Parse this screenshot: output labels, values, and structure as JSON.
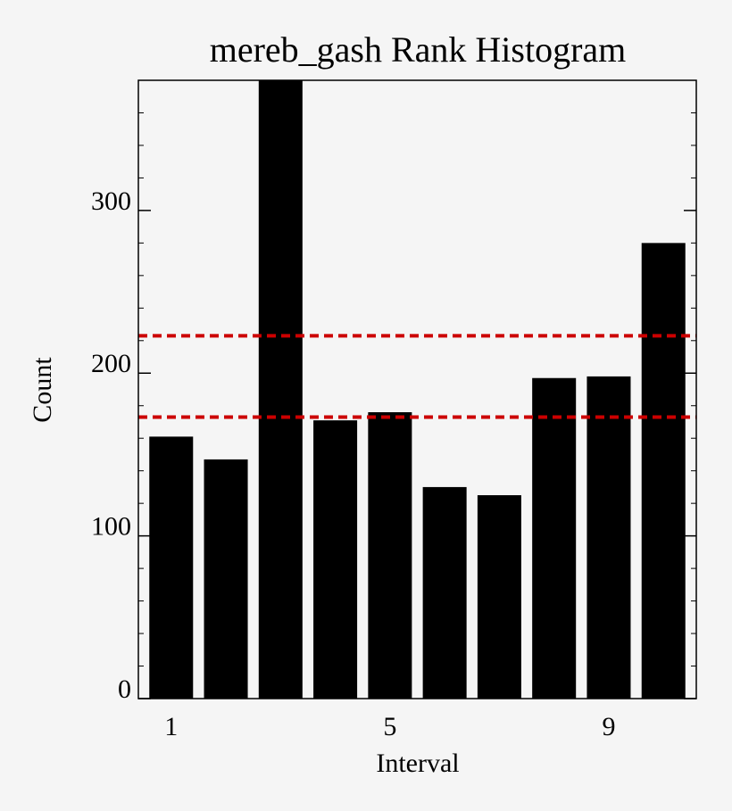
{
  "chart_data": {
    "type": "bar",
    "title": "mereb_gash Rank Histogram",
    "xlabel": "Interval",
    "ylabel": "Count",
    "x": [
      1,
      2,
      3,
      4,
      5,
      6,
      7,
      8,
      9,
      10
    ],
    "values": [
      161,
      147,
      380,
      171,
      176,
      130,
      125,
      197,
      198,
      280
    ],
    "color": "#000000",
    "xlim": [
      0.4,
      10.6
    ],
    "xticks": [
      1,
      5,
      9
    ],
    "ylim": [
      0,
      380
    ],
    "yticks": [
      0,
      100,
      200,
      300
    ],
    "yminor": 20,
    "reference_lines": [
      223,
      173
    ],
    "reference_line_color": "#cc0000"
  }
}
